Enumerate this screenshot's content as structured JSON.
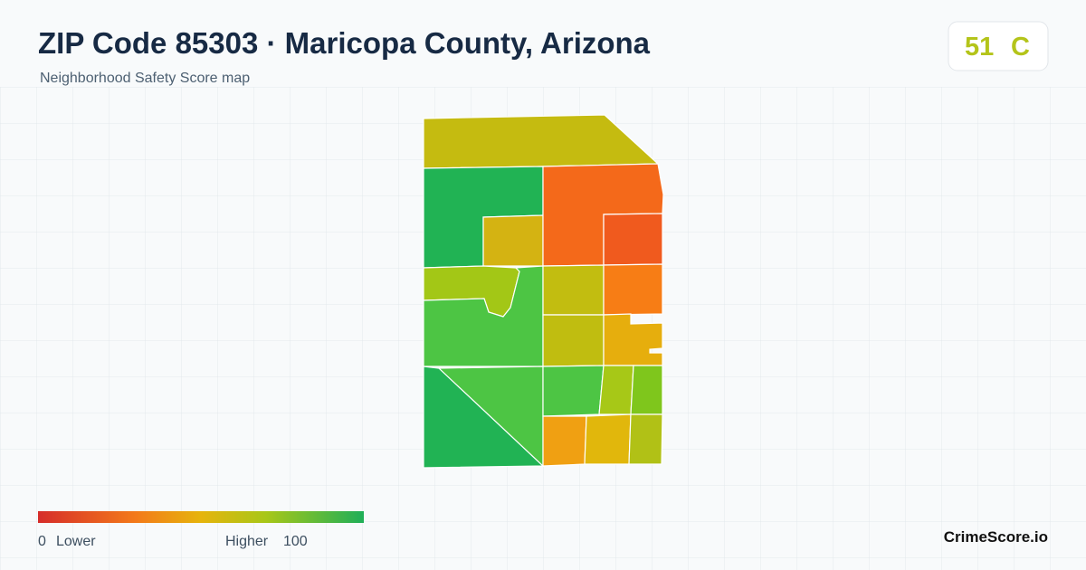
{
  "header": {
    "title": "ZIP Code 85303 · Maricopa County, Arizona",
    "subtitle": "Neighborhood Safety Score map"
  },
  "score": {
    "value": 51,
    "grade": "C"
  },
  "legend": {
    "min": 0,
    "min_label": "Lower",
    "max_label": "Higher",
    "max": 100
  },
  "footer": {
    "brand": "CrimeScore.io"
  }
}
